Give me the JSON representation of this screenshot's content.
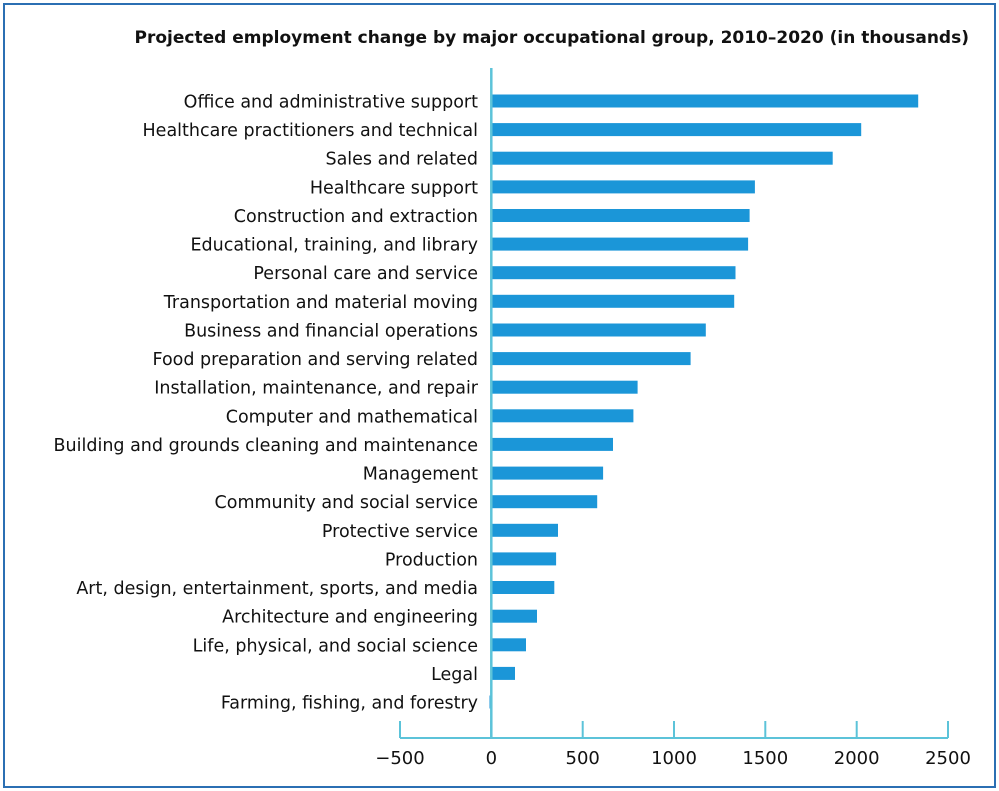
{
  "chart_data": {
    "type": "bar",
    "orientation": "horizontal",
    "title": "Projected employment change by major occupational group, 2010–2020 (in thousands)",
    "xlabel": "",
    "ylabel": "",
    "xlim": [
      -500,
      2500
    ],
    "ticks": [
      -500,
      0,
      500,
      1000,
      1500,
      2000,
      2500
    ],
    "tick_labels": [
      "−500",
      "0",
      "500",
      "1000",
      "1500",
      "2000",
      "2500"
    ],
    "grid": false,
    "bar_color": "#1b96d8",
    "axis_color": "#5cc3d9",
    "categories": [
      "Office and administrative support",
      "Healthcare practitioners and technical",
      "Sales and related",
      "Healthcare support",
      "Construction and extraction",
      "Educational, training, and library",
      "Personal care and service",
      "Transportation and material moving",
      "Business and financial operations",
      "Food preparation and serving related",
      "Installation, maintenance, and repair",
      "Computer and mathematical",
      "Building and grounds cleaning and maintenance",
      "Management",
      "Community and social service",
      "Protective service",
      "Production",
      "Art, design, entertainment, sports, and media",
      "Architecture and engineering",
      "Life, physical, and social science",
      "Legal",
      "Farming, fishing, and forestry"
    ],
    "values": [
      2337,
      2025,
      1869,
      1443,
      1414,
      1406,
      1337,
      1330,
      1174,
      1091,
      801,
      778,
      666,
      612,
      580,
      365,
      355,
      345,
      250,
      190,
      130,
      -10
    ]
  }
}
